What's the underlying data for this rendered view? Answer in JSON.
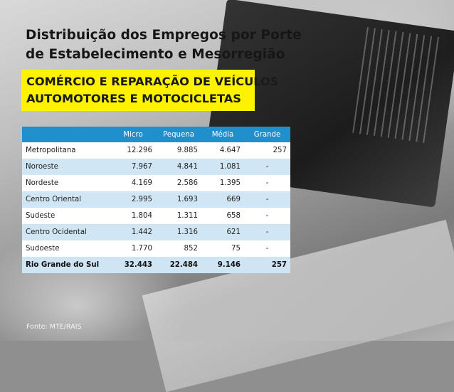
{
  "title_line1": "Distribuição dos Empregos por Porte",
  "title_line2": "de Estabelecimento e Mesorregião",
  "banner_line1": "COMÉRCIO E REPARAÇÃO DE VEÍCULOS",
  "banner_line2": "AUTOMOTORES E MOTOCICLETAS",
  "colors": {
    "banner": "#fff200",
    "header": "#1f8fce",
    "row_alt": "#d0e6f4"
  },
  "table": {
    "headers": [
      "",
      "Micro",
      "Pequena",
      "Média",
      "Grande"
    ],
    "rows": [
      [
        "Metropolitana",
        "12.296",
        "9.885",
        "4.647",
        "257"
      ],
      [
        "Noroeste",
        "7.967",
        "4.841",
        "1.081",
        "-"
      ],
      [
        "Nordeste",
        "4.169",
        "2.586",
        "1.395",
        "-"
      ],
      [
        "Centro Oriental",
        "2.995",
        "1.693",
        "669",
        "-"
      ],
      [
        "Sudeste",
        "1.804",
        "1.311",
        "658",
        "-"
      ],
      [
        "Centro Ocidental",
        "1.442",
        "1.316",
        "621",
        "-"
      ],
      [
        "Sudoeste",
        "1.770",
        "852",
        "75",
        "-"
      ]
    ],
    "total": [
      "Rio Grande do Sul",
      "32.443",
      "22.484",
      "9.146",
      "257"
    ]
  },
  "source": "Fonte: MTE/RAIS"
}
